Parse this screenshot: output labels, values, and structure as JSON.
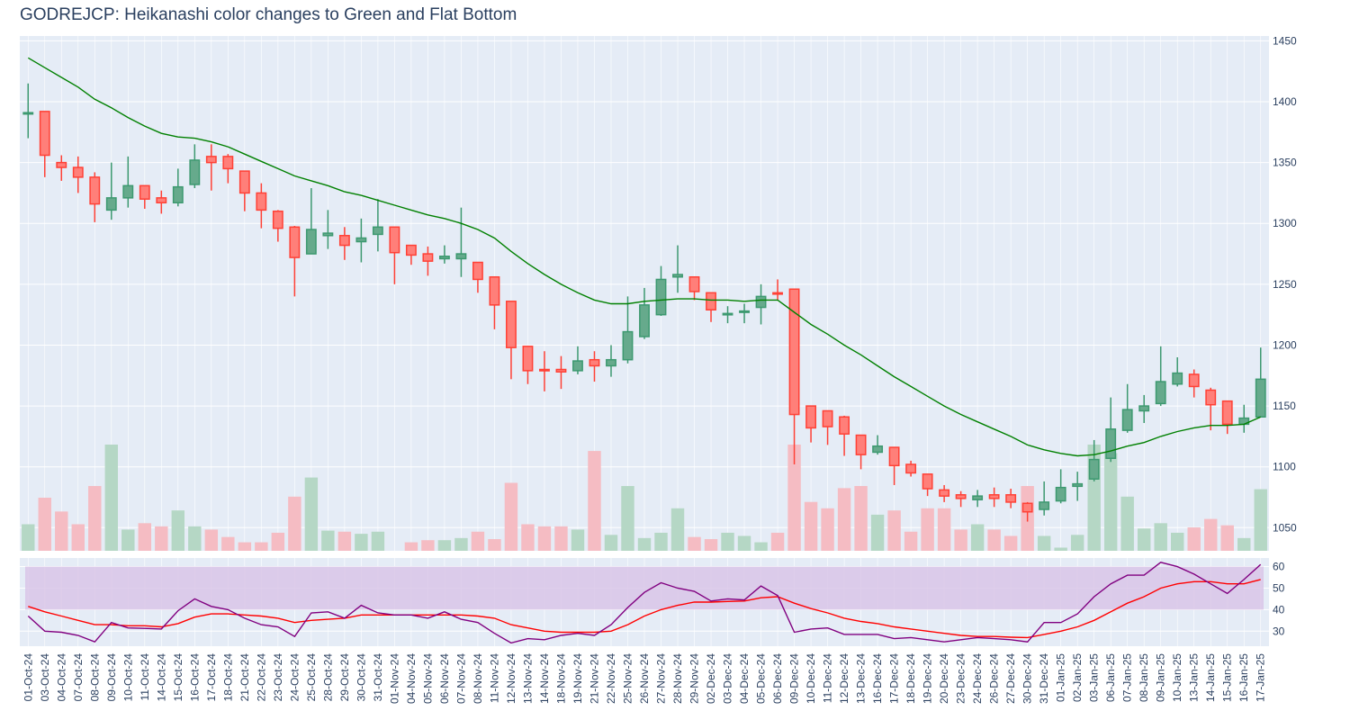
{
  "chart_data": {
    "type": "candlestick",
    "title": "GODREJCP: Heikanashi color changes to Green and Flat Bottom",
    "colors": {
      "increasing": "#3d9970",
      "decreasing": "#ff4136",
      "increasing_fill": "#66aa8c",
      "decreasing_fill": "#ff7f79",
      "volume_up": "#b5d7c5",
      "volume_down": "#f5bcc3",
      "ma_line": "#008000",
      "rsi_line": "#800080",
      "rsi_ma_line": "#ff0000",
      "rsi_band": "#d9c6e8",
      "plot_bg": "#e5ecf6"
    },
    "price_axis": {
      "range": [
        1031,
        1454
      ],
      "ticks": [
        1050,
        1100,
        1150,
        1200,
        1250,
        1300,
        1350,
        1400,
        1450
      ]
    },
    "rsi_axis": {
      "range": [
        23,
        64
      ],
      "ticks": [
        30,
        40,
        50,
        60
      ],
      "band": [
        40,
        60
      ]
    },
    "volume_scale_max": 1.0,
    "dates": [
      "01-Oct-24",
      "03-Oct-24",
      "04-Oct-24",
      "07-Oct-24",
      "08-Oct-24",
      "09-Oct-24",
      "10-Oct-24",
      "11-Oct-24",
      "14-Oct-24",
      "15-Oct-24",
      "16-Oct-24",
      "17-Oct-24",
      "18-Oct-24",
      "21-Oct-24",
      "22-Oct-24",
      "23-Oct-24",
      "24-Oct-24",
      "25-Oct-24",
      "28-Oct-24",
      "29-Oct-24",
      "30-Oct-24",
      "31-Oct-24",
      "01-Nov-24",
      "04-Nov-24",
      "05-Nov-24",
      "06-Nov-24",
      "07-Nov-24",
      "08-Nov-24",
      "11-Nov-24",
      "12-Nov-24",
      "13-Nov-24",
      "14-Nov-24",
      "18-Nov-24",
      "19-Nov-24",
      "21-Nov-24",
      "22-Nov-24",
      "25-Nov-24",
      "26-Nov-24",
      "27-Nov-24",
      "28-Nov-24",
      "29-Nov-24",
      "02-Dec-24",
      "03-Dec-24",
      "04-Dec-24",
      "05-Dec-24",
      "06-Dec-24",
      "09-Dec-24",
      "10-Dec-24",
      "11-Dec-24",
      "12-Dec-24",
      "13-Dec-24",
      "16-Dec-24",
      "17-Dec-24",
      "18-Dec-24",
      "19-Dec-24",
      "20-Dec-24",
      "23-Dec-24",
      "24-Dec-24",
      "26-Dec-24",
      "27-Dec-24",
      "30-Dec-24",
      "31-Dec-24",
      "01-Jan-25",
      "02-Jan-25",
      "03-Jan-25",
      "06-Jan-25",
      "07-Jan-25",
      "08-Jan-25",
      "09-Jan-25",
      "10-Jan-25",
      "13-Jan-25",
      "14-Jan-25",
      "15-Jan-25",
      "16-Jan-25",
      "17-Jan-25"
    ],
    "open": [
      1390,
      1392,
      1350,
      1346,
      1338,
      1311,
      1321,
      1331,
      1321,
      1317,
      1332,
      1355,
      1355,
      1343,
      1325,
      1310,
      1297,
      1275,
      1290,
      1290,
      1285,
      1291,
      1297,
      1282,
      1275,
      1271,
      1271,
      1268,
      1256,
      1236,
      1199,
      1180,
      1180,
      1179,
      1188,
      1183,
      1188,
      1207,
      1225,
      1256,
      1256,
      1243,
      1226,
      1227,
      1231,
      1243,
      1246,
      1150,
      1146,
      1141,
      1126,
      1112,
      1116,
      1102,
      1094,
      1081,
      1077,
      1073,
      1077,
      1077,
      1070,
      1065,
      1072,
      1084,
      1090,
      1107,
      1130,
      1146,
      1152,
      1168,
      1176,
      1163,
      1154,
      1135,
      1141
    ],
    "high": [
      1415,
      1392,
      1356,
      1355,
      1342,
      1350,
      1355,
      1331,
      1327,
      1345,
      1365,
      1365,
      1357,
      1343,
      1333,
      1311,
      1298,
      1329,
      1311,
      1297,
      1304,
      1320,
      1297,
      1282,
      1281,
      1282,
      1313,
      1268,
      1256,
      1236,
      1199,
      1195,
      1191,
      1199,
      1195,
      1200,
      1240,
      1247,
      1265,
      1282,
      1256,
      1243,
      1232,
      1234,
      1250,
      1254,
      1246,
      1150,
      1146,
      1142,
      1126,
      1126,
      1116,
      1105,
      1094,
      1085,
      1080,
      1081,
      1083,
      1082,
      1071,
      1088,
      1098,
      1096,
      1122,
      1157,
      1168,
      1159,
      1199,
      1190,
      1180,
      1165,
      1154,
      1151,
      1198
    ],
    "low": [
      1370,
      1338,
      1335,
      1325,
      1301,
      1303,
      1313,
      1312,
      1308,
      1314,
      1329,
      1327,
      1333,
      1310,
      1296,
      1285,
      1240,
      1275,
      1279,
      1270,
      1268,
      1277,
      1250,
      1266,
      1257,
      1267,
      1256,
      1243,
      1213,
      1172,
      1168,
      1162,
      1164,
      1176,
      1170,
      1174,
      1185,
      1205,
      1224,
      1243,
      1237,
      1219,
      1218,
      1218,
      1217,
      1237,
      1102,
      1120,
      1118,
      1109,
      1098,
      1110,
      1085,
      1092,
      1076,
      1071,
      1067,
      1067,
      1067,
      1066,
      1055,
      1060,
      1070,
      1072,
      1088,
      1104,
      1128,
      1136,
      1150,
      1166,
      1157,
      1130,
      1127,
      1128,
      1141
    ],
    "close": [
      1391,
      1356,
      1346,
      1338,
      1316,
      1321,
      1331,
      1320,
      1317,
      1330,
      1352,
      1350,
      1345,
      1325,
      1311,
      1296,
      1272,
      1295,
      1292,
      1282,
      1288,
      1297,
      1276,
      1274,
      1269,
      1273,
      1275,
      1254,
      1233,
      1198,
      1179,
      1179,
      1178,
      1187,
      1183,
      1188,
      1211,
      1233,
      1254,
      1258,
      1244,
      1229,
      1226,
      1228,
      1240,
      1242,
      1143,
      1132,
      1133,
      1127,
      1110,
      1117,
      1101,
      1095,
      1082,
      1076,
      1074,
      1076,
      1074,
      1071,
      1063,
      1071,
      1083,
      1086,
      1106,
      1131,
      1147,
      1150,
      1170,
      1177,
      1166,
      1151,
      1135,
      1140,
      1172
    ],
    "ma": [
      1436,
      1428,
      1420,
      1412,
      1402,
      1395,
      1387,
      1380,
      1374,
      1371,
      1370,
      1367,
      1363,
      1357,
      1351,
      1345,
      1339,
      1335,
      1331,
      1326,
      1323,
      1319,
      1315,
      1311,
      1307,
      1304,
      1300,
      1295,
      1288,
      1277,
      1267,
      1258,
      1250,
      1243,
      1237,
      1234,
      1234,
      1236,
      1237,
      1238,
      1238,
      1237,
      1237,
      1236,
      1237,
      1237,
      1227,
      1217,
      1209,
      1200,
      1192,
      1183,
      1174,
      1166,
      1158,
      1150,
      1143,
      1137,
      1131,
      1125,
      1118,
      1114,
      1111,
      1109,
      1110,
      1113,
      1117,
      1120,
      1125,
      1129,
      1132,
      1134,
      1134,
      1135,
      1141
    ],
    "volume": [
      0.25,
      0.5,
      0.37,
      0.25,
      0.61,
      1.0,
      0.2,
      0.26,
      0.23,
      0.38,
      0.23,
      0.2,
      0.13,
      0.08,
      0.08,
      0.17,
      0.51,
      0.69,
      0.19,
      0.18,
      0.16,
      0.18,
      0.0,
      0.08,
      0.1,
      0.1,
      0.12,
      0.18,
      0.11,
      0.64,
      0.25,
      0.23,
      0.23,
      0.2,
      0.94,
      0.15,
      0.61,
      0.12,
      0.17,
      0.4,
      0.13,
      0.11,
      0.17,
      0.14,
      0.08,
      0.17,
      1.0,
      0.46,
      0.4,
      0.59,
      0.61,
      0.34,
      0.38,
      0.18,
      0.4,
      0.4,
      0.2,
      0.25,
      0.2,
      0.14,
      0.61,
      0.14,
      0.03,
      0.15,
      1.0,
      0.92,
      0.51,
      0.21,
      0.26,
      0.17,
      0.22,
      0.3,
      0.24,
      0.12,
      0.58
    ],
    "rsi": [
      37,
      30,
      29.5,
      28,
      25,
      34,
      31.5,
      31.3,
      31,
      39.5,
      45,
      41.5,
      40,
      36,
      33,
      32,
      27.5,
      38.5,
      39,
      36,
      42,
      38.5,
      37.5,
      37.5,
      36,
      39,
      35.5,
      34,
      29,
      24.5,
      26.5,
      26,
      28,
      29,
      28,
      33,
      41,
      48,
      52.5,
      50,
      48.5,
      44,
      45,
      44.5,
      51,
      46.5,
      29.5,
      31,
      31.5,
      28.5,
      28.5,
      28.5,
      26.5,
      27,
      26,
      25,
      26,
      27,
      26.5,
      26,
      25,
      34,
      34,
      38,
      46,
      52,
      56,
      56,
      62,
      60,
      56.5,
      52,
      47.5,
      54,
      61
    ],
    "rsi_ma": [
      41.5,
      39,
      37,
      35,
      33,
      33,
      32.5,
      32.5,
      32,
      33.5,
      36.5,
      38,
      38,
      37.5,
      37,
      36,
      34,
      35,
      35.5,
      36,
      37.5,
      37.5,
      37.5,
      37.5,
      37.5,
      37.5,
      37.5,
      37,
      36,
      33,
      31.5,
      30,
      29.5,
      29.5,
      29.5,
      30,
      33,
      37,
      40,
      42,
      43.5,
      43.5,
      43.8,
      44,
      45.5,
      46,
      43,
      40.5,
      38.5,
      36,
      34.5,
      33.5,
      32,
      31,
      30,
      29,
      28,
      27.5,
      27.5,
      27.2,
      27,
      28.5,
      30,
      32,
      35,
      39,
      43,
      46,
      50,
      52,
      53,
      53,
      52,
      52,
      54
    ]
  }
}
